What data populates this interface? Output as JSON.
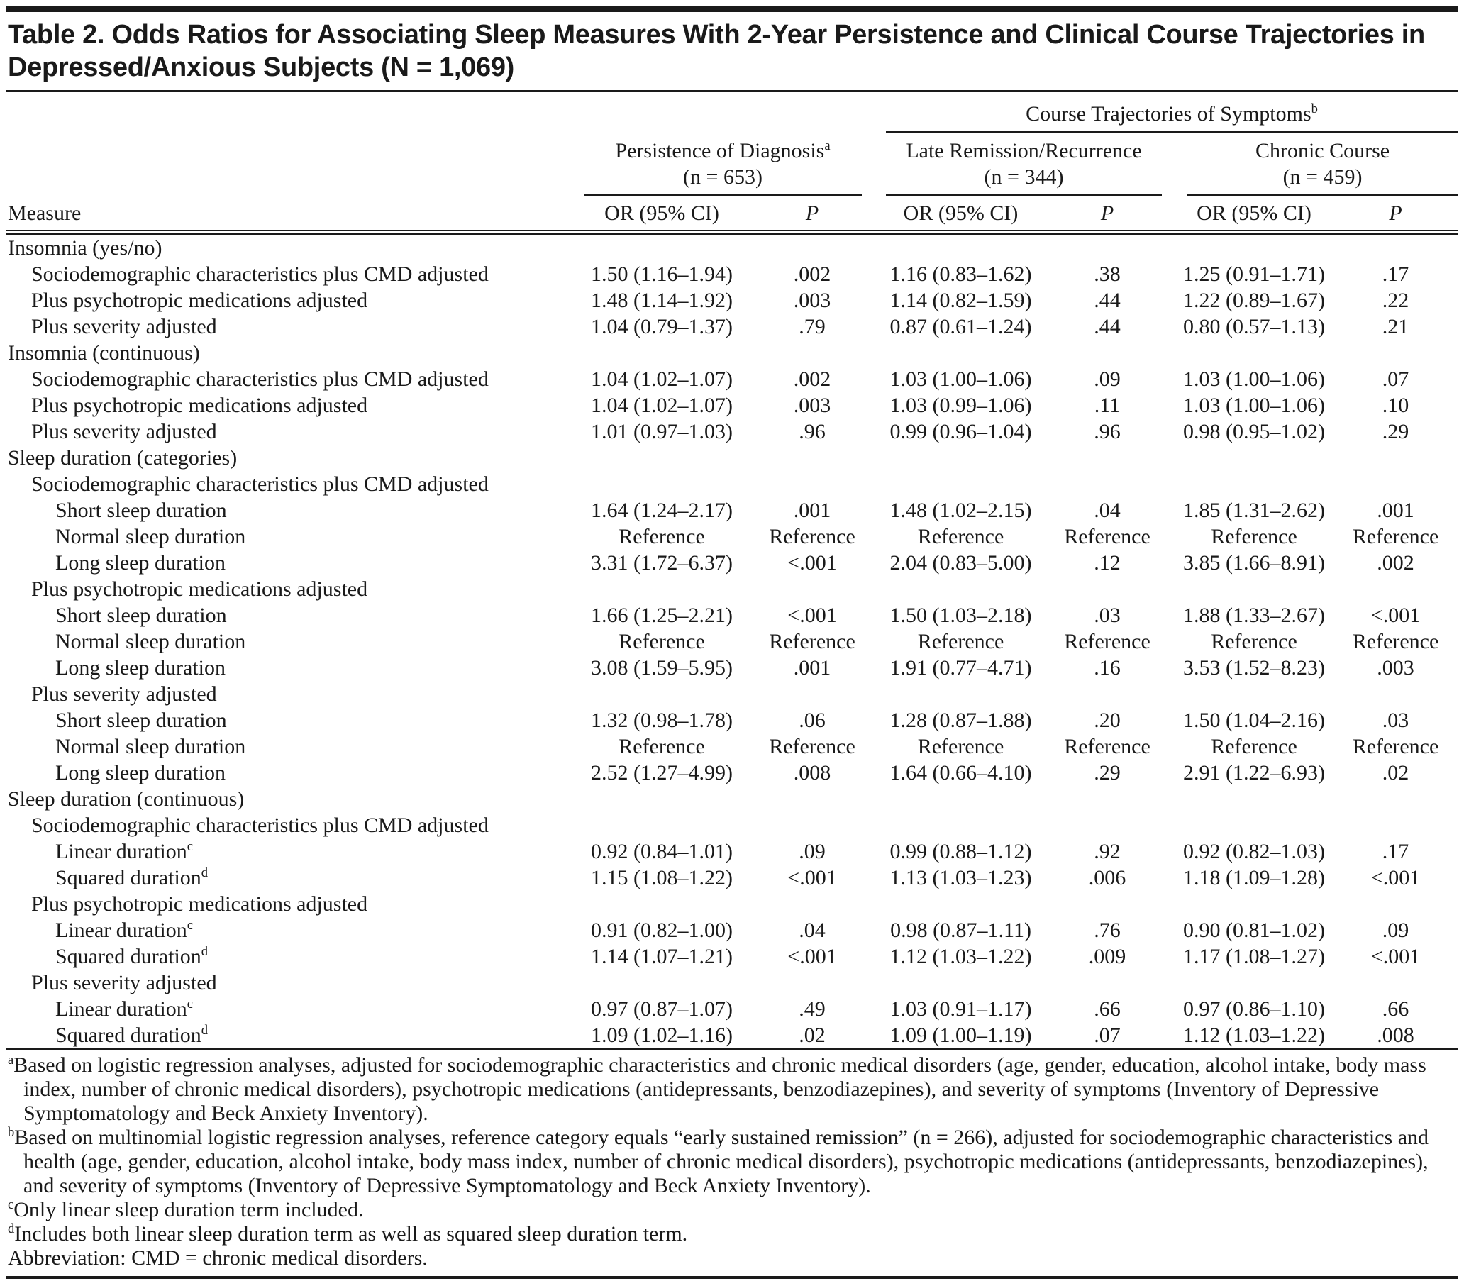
{
  "title": {
    "line1": "Table 2. Odds Ratios for Associating Sleep Measures With 2-Year Persistence and Clinical Course Trajectories in",
    "line2": "Depressed/Anxious Subjects (N = 1,069)"
  },
  "table": {
    "header": {
      "measure_label": "Measure",
      "trajectories": {
        "label": "Course Trajectories of Symptoms",
        "sup": "b"
      },
      "groups": [
        {
          "label": "Persistence of Diagnosis",
          "sup": "a",
          "n": "(n = 653)"
        },
        {
          "label": "Late Remission/Recurrence",
          "sup": "",
          "n": "(n = 344)"
        },
        {
          "label": "Chronic Course",
          "sup": "",
          "n": "(n = 459)"
        }
      ],
      "or_label": "OR (95% CI)",
      "p_label": "P"
    },
    "rows": [
      {
        "indent": 0,
        "label": "Insomnia (yes/no)",
        "sup": ""
      },
      {
        "indent": 1,
        "label": "Sociodemographic characteristics plus CMD adjusted",
        "sup": "",
        "cells": [
          "1.50 (1.16–1.94)",
          ".002",
          "1.16 (0.83–1.62)",
          ".38",
          "1.25 (0.91–1.71)",
          ".17"
        ]
      },
      {
        "indent": 1,
        "label": "Plus psychotropic medications adjusted",
        "sup": "",
        "cells": [
          "1.48 (1.14–1.92)",
          ".003",
          "1.14 (0.82–1.59)",
          ".44",
          "1.22 (0.89–1.67)",
          ".22"
        ]
      },
      {
        "indent": 1,
        "label": "Plus severity adjusted",
        "sup": "",
        "cells": [
          "1.04 (0.79–1.37)",
          ".79",
          "0.87 (0.61–1.24)",
          ".44",
          "0.80 (0.57–1.13)",
          ".21"
        ]
      },
      {
        "indent": 0,
        "label": "Insomnia (continuous)",
        "sup": ""
      },
      {
        "indent": 1,
        "label": "Sociodemographic characteristics plus CMD adjusted",
        "sup": "",
        "cells": [
          "1.04 (1.02–1.07)",
          ".002",
          "1.03 (1.00–1.06)",
          ".09",
          "1.03 (1.00–1.06)",
          ".07"
        ]
      },
      {
        "indent": 1,
        "label": "Plus psychotropic medications adjusted",
        "sup": "",
        "cells": [
          "1.04 (1.02–1.07)",
          ".003",
          "1.03 (0.99–1.06)",
          ".11",
          "1.03 (1.00–1.06)",
          ".10"
        ]
      },
      {
        "indent": 1,
        "label": "Plus severity adjusted",
        "sup": "",
        "cells": [
          "1.01 (0.97–1.03)",
          ".96",
          "0.99 (0.96–1.04)",
          ".96",
          "0.98 (0.95–1.02)",
          ".29"
        ]
      },
      {
        "indent": 0,
        "label": "Sleep duration (categories)",
        "sup": ""
      },
      {
        "indent": 1,
        "label": "Sociodemographic characteristics plus CMD adjusted",
        "sup": ""
      },
      {
        "indent": 2,
        "label": "Short sleep duration",
        "sup": "",
        "cells": [
          "1.64 (1.24–2.17)",
          ".001",
          "1.48 (1.02–2.15)",
          ".04",
          "1.85 (1.31–2.62)",
          ".001"
        ]
      },
      {
        "indent": 2,
        "label": "Normal sleep duration",
        "sup": "",
        "cells": [
          "Reference",
          "Reference",
          "Reference",
          "Reference",
          "Reference",
          "Reference"
        ]
      },
      {
        "indent": 2,
        "label": "Long sleep duration",
        "sup": "",
        "cells": [
          "3.31 (1.72–6.37)",
          "<.001",
          "2.04 (0.83–5.00)",
          ".12",
          "3.85 (1.66–8.91)",
          ".002"
        ]
      },
      {
        "indent": 1,
        "label": "Plus psychotropic medications adjusted",
        "sup": ""
      },
      {
        "indent": 2,
        "label": "Short sleep duration",
        "sup": "",
        "cells": [
          "1.66 (1.25–2.21)",
          "<.001",
          "1.50 (1.03–2.18)",
          ".03",
          "1.88 (1.33–2.67)",
          "<.001"
        ]
      },
      {
        "indent": 2,
        "label": "Normal sleep duration",
        "sup": "",
        "cells": [
          "Reference",
          "Reference",
          "Reference",
          "Reference",
          "Reference",
          "Reference"
        ]
      },
      {
        "indent": 2,
        "label": "Long sleep duration",
        "sup": "",
        "cells": [
          "3.08 (1.59–5.95)",
          ".001",
          "1.91 (0.77–4.71)",
          ".16",
          "3.53 (1.52–8.23)",
          ".003"
        ]
      },
      {
        "indent": 1,
        "label": "Plus severity adjusted",
        "sup": ""
      },
      {
        "indent": 2,
        "label": "Short sleep duration",
        "sup": "",
        "cells": [
          "1.32 (0.98–1.78)",
          ".06",
          "1.28 (0.87–1.88)",
          ".20",
          "1.50 (1.04–2.16)",
          ".03"
        ]
      },
      {
        "indent": 2,
        "label": "Normal sleep duration",
        "sup": "",
        "cells": [
          "Reference",
          "Reference",
          "Reference",
          "Reference",
          "Reference",
          "Reference"
        ]
      },
      {
        "indent": 2,
        "label": "Long sleep duration",
        "sup": "",
        "cells": [
          "2.52 (1.27–4.99)",
          ".008",
          "1.64 (0.66–4.10)",
          ".29",
          "2.91 (1.22–6.93)",
          ".02"
        ]
      },
      {
        "indent": 0,
        "label": "Sleep duration (continuous)",
        "sup": ""
      },
      {
        "indent": 1,
        "label": "Sociodemographic characteristics plus CMD adjusted",
        "sup": ""
      },
      {
        "indent": 2,
        "label": "Linear duration",
        "sup": "c",
        "cells": [
          "0.92 (0.84–1.01)",
          ".09",
          "0.99 (0.88–1.12)",
          ".92",
          "0.92 (0.82–1.03)",
          ".17"
        ]
      },
      {
        "indent": 2,
        "label": "Squared duration",
        "sup": "d",
        "cells": [
          "1.15 (1.08–1.22)",
          "<.001",
          "1.13 (1.03–1.23)",
          ".006",
          "1.18 (1.09–1.28)",
          "<.001"
        ]
      },
      {
        "indent": 1,
        "label": "Plus psychotropic medications adjusted",
        "sup": ""
      },
      {
        "indent": 2,
        "label": "Linear duration",
        "sup": "c",
        "cells": [
          "0.91 (0.82–1.00)",
          ".04",
          "0.98 (0.87–1.11)",
          ".76",
          "0.90 (0.81–1.02)",
          ".09"
        ]
      },
      {
        "indent": 2,
        "label": "Squared duration",
        "sup": "d",
        "cells": [
          "1.14 (1.07–1.21)",
          "<.001",
          "1.12 (1.03–1.22)",
          ".009",
          "1.17 (1.08–1.27)",
          "<.001"
        ]
      },
      {
        "indent": 1,
        "label": "Plus severity adjusted",
        "sup": ""
      },
      {
        "indent": 2,
        "label": "Linear duration",
        "sup": "c",
        "cells": [
          "0.97 (0.87–1.07)",
          ".49",
          "1.03 (0.91–1.17)",
          ".66",
          "0.97 (0.86–1.10)",
          ".66"
        ]
      },
      {
        "indent": 2,
        "label": "Squared duration",
        "sup": "d",
        "cells": [
          "1.09 (1.02–1.16)",
          ".02",
          "1.09 (1.00–1.19)",
          ".07",
          "1.12 (1.03–1.22)",
          ".008"
        ]
      }
    ]
  },
  "footnotes": [
    {
      "sup": "a",
      "text": "Based on logistic regression analyses, adjusted for sociodemographic characteristics and chronic medical disorders (age, gender, education, alcohol intake, body mass index, number of chronic medical disorders), psychotropic medications (antidepressants, benzodiazepines), and severity of symptoms (Inventory of Depressive Symptomatology and Beck Anxiety Inventory)."
    },
    {
      "sup": "b",
      "text": "Based on multinomial logistic regression analyses, reference category equals “early sustained remission” (n = 266), adjusted for sociodemographic characteristics and health (age, gender, education, alcohol intake, body mass index, number of chronic medical disorders), psychotropic medications (antidepressants, benzodiazepines), and severity of symptoms (Inventory of Depressive Symptomatology and Beck Anxiety Inventory)."
    },
    {
      "sup": "c",
      "text": "Only linear sleep duration term included."
    },
    {
      "sup": "d",
      "text": "Includes both linear sleep duration term as well as squared sleep duration term."
    },
    {
      "sup": "",
      "text": "Abbreviation: CMD = chronic medical disorders."
    }
  ]
}
